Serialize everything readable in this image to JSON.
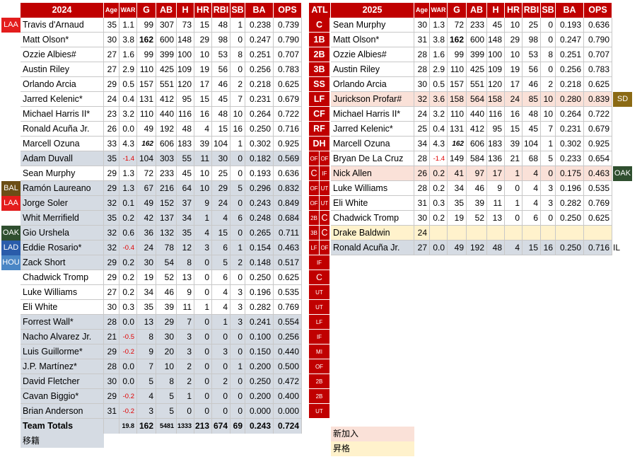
{
  "left": {
    "header": [
      "2024",
      "Age",
      "WAR",
      "G",
      "AB",
      "H",
      "HR",
      "RBI",
      "SB",
      "BA",
      "OPS"
    ],
    "rows": [
      {
        "tag": "LAA",
        "tagc": "#e31d1d",
        "bg": "white",
        "name": "Travis d'Arnaud",
        "age": "35",
        "war": "1.1",
        "g": "99",
        "ab": "307",
        "h": "73",
        "hr": "15",
        "rbi": "48",
        "sb": "1",
        "ba": "0.238",
        "ops": "0.739"
      },
      {
        "tag": "",
        "bg": "white",
        "name": "Matt Olson*",
        "age": "30",
        "war": "3.8",
        "g": "162",
        "gb": true,
        "ab": "600",
        "h": "148",
        "hr": "29",
        "rbi": "98",
        "sb": "0",
        "ba": "0.247",
        "ops": "0.790"
      },
      {
        "tag": "",
        "bg": "white",
        "name": "Ozzie Albies#",
        "age": "27",
        "war": "1.6",
        "g": "99",
        "ab": "399",
        "h": "100",
        "hr": "10",
        "rbi": "53",
        "sb": "8",
        "ba": "0.251",
        "ops": "0.707"
      },
      {
        "tag": "",
        "bg": "white",
        "name": "Austin Riley",
        "age": "27",
        "war": "2.9",
        "g": "110",
        "ab": "425",
        "h": "109",
        "hr": "19",
        "rbi": "56",
        "sb": "0",
        "ba": "0.256",
        "ops": "0.783"
      },
      {
        "tag": "",
        "bg": "white",
        "name": "Orlando Arcia",
        "age": "29",
        "war": "0.5",
        "g": "157",
        "ab": "551",
        "h": "120",
        "hr": "17",
        "rbi": "46",
        "sb": "2",
        "ba": "0.218",
        "ops": "0.625"
      },
      {
        "tag": "",
        "bg": "white",
        "name": "Jarred Kelenic*",
        "age": "24",
        "war": "0.4",
        "g": "131",
        "ab": "412",
        "h": "95",
        "hr": "15",
        "rbi": "45",
        "sb": "7",
        "ba": "0.231",
        "ops": "0.679"
      },
      {
        "tag": "",
        "bg": "white",
        "name": "Michael Harris II*",
        "age": "23",
        "war": "3.2",
        "g": "110",
        "ab": "440",
        "h": "116",
        "hr": "16",
        "rbi": "48",
        "sb": "10",
        "ba": "0.264",
        "ops": "0.722"
      },
      {
        "tag": "",
        "bg": "white",
        "name": "Ronald Acuña Jr.",
        "age": "26",
        "war": "0.0",
        "g": "49",
        "ab": "192",
        "h": "48",
        "hr": "4",
        "rbi": "15",
        "sb": "16",
        "ba": "0.250",
        "ops": "0.716"
      },
      {
        "tag": "",
        "bg": "white",
        "name": "Marcell Ozuna",
        "age": "33",
        "war": "4.3",
        "g": "162",
        "gbi": true,
        "ab": "606",
        "h": "183",
        "hr": "39",
        "rbi": "104",
        "sb": "1",
        "ba": "0.302",
        "ops": "0.925"
      },
      {
        "tag": "",
        "bg": "gray",
        "name": "Adam Duvall",
        "age": "35",
        "war": "-1.4",
        "g": "104",
        "ab": "303",
        "h": "55",
        "hr": "11",
        "rbi": "30",
        "sb": "0",
        "ba": "0.182",
        "ops": "0.569"
      },
      {
        "tag": "",
        "bg": "white",
        "name": "Sean Murphy",
        "age": "29",
        "war": "1.3",
        "g": "72",
        "ab": "233",
        "h": "45",
        "hr": "10",
        "rbi": "25",
        "sb": "0",
        "ba": "0.193",
        "ops": "0.636"
      },
      {
        "tag": "BAL",
        "tagc": "#6b4e16",
        "bg": "gray",
        "name": "Ramón Laureano",
        "age": "29",
        "war": "1.3",
        "g": "67",
        "ab": "216",
        "h": "64",
        "hr": "10",
        "rbi": "29",
        "sb": "5",
        "ba": "0.296",
        "ops": "0.832"
      },
      {
        "tag": "LAA",
        "tagc": "#e31d1d",
        "bg": "gray",
        "name": "Jorge Soler",
        "age": "32",
        "war": "0.1",
        "g": "49",
        "ab": "152",
        "h": "37",
        "hr": "9",
        "rbi": "24",
        "sb": "0",
        "ba": "0.243",
        "ops": "0.849"
      },
      {
        "tag": "",
        "bg": "gray",
        "name": "Whit Merrifield",
        "age": "35",
        "war": "0.2",
        "g": "42",
        "ab": "137",
        "h": "34",
        "hr": "1",
        "rbi": "4",
        "sb": "6",
        "ba": "0.248",
        "ops": "0.684"
      },
      {
        "tag": "OAK",
        "tagc": "#2f4f2f",
        "bg": "gray",
        "name": "Gio Urshela",
        "age": "32",
        "war": "0.6",
        "g": "36",
        "ab": "132",
        "h": "35",
        "hr": "4",
        "rbi": "15",
        "sb": "0",
        "ba": "0.265",
        "ops": "0.711"
      },
      {
        "tag": "LAD",
        "tagc": "#2a5caa",
        "bg": "gray",
        "name": "Eddie Rosario*",
        "age": "32",
        "war": "-0.4",
        "g": "24",
        "ab": "78",
        "h": "12",
        "hr": "3",
        "rbi": "6",
        "sb": "1",
        "ba": "0.154",
        "ops": "0.463"
      },
      {
        "tag": "HOU",
        "tagc": "#4a86c5",
        "bg": "gray",
        "name": "Zack Short",
        "age": "29",
        "war": "0.2",
        "g": "30",
        "ab": "54",
        "h": "8",
        "hr": "0",
        "rbi": "5",
        "sb": "2",
        "ba": "0.148",
        "ops": "0.517"
      },
      {
        "tag": "",
        "bg": "white",
        "name": "Chadwick Tromp",
        "age": "29",
        "war": "0.2",
        "g": "19",
        "ab": "52",
        "h": "13",
        "hr": "0",
        "rbi": "6",
        "sb": "0",
        "ba": "0.250",
        "ops": "0.625"
      },
      {
        "tag": "",
        "bg": "white",
        "name": "Luke Williams",
        "age": "27",
        "war": "0.2",
        "g": "34",
        "ab": "46",
        "h": "9",
        "hr": "0",
        "rbi": "4",
        "sb": "3",
        "ba": "0.196",
        "ops": "0.535"
      },
      {
        "tag": "",
        "bg": "white",
        "name": "Eli White",
        "age": "30",
        "war": "0.3",
        "g": "35",
        "ab": "39",
        "h": "11",
        "hr": "1",
        "rbi": "4",
        "sb": "3",
        "ba": "0.282",
        "ops": "0.769"
      },
      {
        "tag": "",
        "bg": "gray",
        "name": "Forrest Wall*",
        "age": "28",
        "war": "0.0",
        "g": "13",
        "ab": "29",
        "h": "7",
        "hr": "0",
        "rbi": "1",
        "sb": "3",
        "ba": "0.241",
        "ops": "0.554"
      },
      {
        "tag": "",
        "bg": "gray",
        "name": "Nacho Alvarez Jr.",
        "age": "21",
        "war": "-0.5",
        "g": "8",
        "ab": "30",
        "h": "3",
        "hr": "0",
        "rbi": "0",
        "sb": "0",
        "ba": "0.100",
        "ops": "0.256"
      },
      {
        "tag": "",
        "bg": "gray",
        "name": "Luis Guillorme*",
        "age": "29",
        "war": "-0.2",
        "g": "9",
        "ab": "20",
        "h": "3",
        "hr": "0",
        "rbi": "3",
        "sb": "0",
        "ba": "0.150",
        "ops": "0.440"
      },
      {
        "tag": "",
        "bg": "gray",
        "name": "J.P. Martínez*",
        "age": "28",
        "war": "0.0",
        "g": "7",
        "ab": "10",
        "h": "2",
        "hr": "0",
        "rbi": "0",
        "sb": "1",
        "ba": "0.200",
        "ops": "0.500"
      },
      {
        "tag": "",
        "bg": "gray",
        "name": "David Fletcher",
        "age": "30",
        "war": "0.0",
        "g": "5",
        "ab": "8",
        "h": "2",
        "hr": "0",
        "rbi": "2",
        "sb": "0",
        "ba": "0.250",
        "ops": "0.472"
      },
      {
        "tag": "",
        "bg": "gray",
        "name": "Cavan Biggio*",
        "age": "29",
        "war": "-0.2",
        "g": "4",
        "ab": "5",
        "h": "1",
        "hr": "0",
        "rbi": "0",
        "sb": "0",
        "ba": "0.200",
        "ops": "0.400"
      },
      {
        "tag": "",
        "bg": "gray",
        "name": "Brian Anderson",
        "age": "31",
        "war": "-0.2",
        "g": "3",
        "ab": "5",
        "h": "0",
        "hr": "0",
        "rbi": "0",
        "sb": "0",
        "ba": "0.000",
        "ops": "0.000"
      }
    ],
    "totals": {
      "name": "Team Totals",
      "age": "",
      "war": "19.8",
      "g": "162",
      "ab": "5481",
      "h": "1333",
      "hr": "213",
      "rbi": "674",
      "sb": "69",
      "ba": "0.243",
      "ops": "0.724"
    }
  },
  "positions": {
    "header": "ATL",
    "items": [
      {
        "l": "C"
      },
      {
        "l": "1B"
      },
      {
        "l": "2B"
      },
      {
        "l": "3B"
      },
      {
        "l": "SS"
      },
      {
        "l": "LF"
      },
      {
        "l": "CF"
      },
      {
        "l": "RF"
      },
      {
        "l": "DH"
      },
      {
        "a": "OF",
        "b": "OF"
      },
      {
        "a": "C",
        "b": "IF"
      },
      {
        "a": "OF",
        "b": "UT"
      },
      {
        "a": "OF",
        "b": "UT"
      },
      {
        "a": "2B",
        "b": "C"
      },
      {
        "a": "3B",
        "b": "C"
      },
      {
        "a": "LF",
        "b": "OF"
      },
      {
        "l": "IF"
      },
      {
        "l": "C"
      },
      {
        "l": "UT"
      },
      {
        "l": "UT"
      },
      {
        "l": "LF"
      },
      {
        "l": "IF"
      },
      {
        "l": "MI"
      },
      {
        "l": "OF"
      },
      {
        "l": "2B"
      },
      {
        "l": "2B"
      },
      {
        "l": "UT"
      }
    ]
  },
  "right": {
    "header": [
      "2025",
      "Age",
      "WAR",
      "G",
      "AB",
      "H",
      "HR",
      "RBI",
      "SB",
      "BA",
      "OPS"
    ],
    "rows": [
      {
        "bg": "white",
        "name": "Sean Murphy",
        "age": "30",
        "war": "1.3",
        "g": "72",
        "ab": "233",
        "h": "45",
        "hr": "10",
        "rbi": "25",
        "sb": "0",
        "ba": "0.193",
        "ops": "0.636"
      },
      {
        "bg": "white",
        "name": "Matt Olson*",
        "age": "31",
        "war": "3.8",
        "g": "162",
        "gb": true,
        "ab": "600",
        "h": "148",
        "hr": "29",
        "rbi": "98",
        "sb": "0",
        "ba": "0.247",
        "ops": "0.790"
      },
      {
        "bg": "white",
        "name": "Ozzie Albies#",
        "age": "28",
        "war": "1.6",
        "g": "99",
        "ab": "399",
        "h": "100",
        "hr": "10",
        "rbi": "53",
        "sb": "8",
        "ba": "0.251",
        "ops": "0.707"
      },
      {
        "bg": "white",
        "name": "Austin Riley",
        "age": "28",
        "war": "2.9",
        "g": "110",
        "ab": "425",
        "h": "109",
        "hr": "19",
        "rbi": "56",
        "sb": "0",
        "ba": "0.256",
        "ops": "0.783"
      },
      {
        "bg": "white",
        "name": "Orlando Arcia",
        "age": "30",
        "war": "0.5",
        "g": "157",
        "ab": "551",
        "h": "120",
        "hr": "17",
        "rbi": "46",
        "sb": "2",
        "ba": "0.218",
        "ops": "0.625"
      },
      {
        "bg": "pink",
        "name": "Jurickson Profar#",
        "age": "32",
        "war": "3.6",
        "g": "158",
        "ab": "564",
        "h": "158",
        "hr": "24",
        "rbi": "85",
        "sb": "10",
        "ba": "0.280",
        "ops": "0.839",
        "rtag": "SD",
        "rtagc": "#8b6a14"
      },
      {
        "bg": "white",
        "name": "Michael Harris II*",
        "age": "24",
        "war": "3.2",
        "g": "110",
        "ab": "440",
        "h": "116",
        "hr": "16",
        "rbi": "48",
        "sb": "10",
        "ba": "0.264",
        "ops": "0.722"
      },
      {
        "bg": "white",
        "name": "Jarred Kelenic*",
        "age": "25",
        "war": "0.4",
        "g": "131",
        "ab": "412",
        "h": "95",
        "hr": "15",
        "rbi": "45",
        "sb": "7",
        "ba": "0.231",
        "ops": "0.679"
      },
      {
        "bg": "white",
        "name": "Marcell Ozuna",
        "age": "34",
        "war": "4.3",
        "g": "162",
        "gbi": true,
        "ab": "606",
        "h": "183",
        "hr": "39",
        "rbi": "104",
        "sb": "1",
        "ba": "0.302",
        "ops": "0.925"
      },
      {
        "bg": "white",
        "name": "Bryan De La Cruz",
        "age": "28",
        "war": "-1.4",
        "g": "149",
        "ab": "584",
        "h": "136",
        "hr": "21",
        "rbi": "68",
        "sb": "5",
        "ba": "0.233",
        "ops": "0.654"
      },
      {
        "bg": "pink",
        "name": "Nick Allen",
        "age": "26",
        "war": "0.2",
        "g": "41",
        "ab": "97",
        "h": "17",
        "hr": "1",
        "rbi": "4",
        "sb": "0",
        "ba": "0.175",
        "ops": "0.463",
        "rtag": "OAK",
        "rtagc": "#2f4f2f"
      },
      {
        "bg": "white",
        "name": "Luke Williams",
        "age": "28",
        "war": "0.2",
        "g": "34",
        "ab": "46",
        "h": "9",
        "hr": "0",
        "rbi": "4",
        "sb": "3",
        "ba": "0.196",
        "ops": "0.535"
      },
      {
        "bg": "white",
        "name": "Eli White",
        "age": "31",
        "war": "0.3",
        "g": "35",
        "ab": "39",
        "h": "11",
        "hr": "1",
        "rbi": "4",
        "sb": "3",
        "ba": "0.282",
        "ops": "0.769"
      },
      {
        "bg": "white",
        "name": "Chadwick Tromp",
        "age": "30",
        "war": "0.2",
        "g": "19",
        "ab": "52",
        "h": "13",
        "hr": "0",
        "rbi": "6",
        "sb": "0",
        "ba": "0.250",
        "ops": "0.625"
      },
      {
        "bg": "yellow",
        "name": "Drake Baldwin",
        "age": "24",
        "war": "",
        "g": "",
        "ab": "",
        "h": "",
        "hr": "",
        "rbi": "",
        "sb": "",
        "ba": "",
        "ops": ""
      },
      {
        "bg": "gray",
        "name": "Ronald Acuña Jr.",
        "age": "27",
        "war": "0.0",
        "g": "49",
        "ab": "192",
        "h": "48",
        "hr": "4",
        "rbi": "15",
        "sb": "16",
        "ba": "0.250",
        "ops": "0.716",
        "rtext": "IL"
      }
    ]
  },
  "legend": {
    "transferred": "移籍",
    "new_addition": "新加入",
    "promoted": "昇格"
  },
  "colors": {
    "header_red": "#c00000",
    "gray_row": "#d5dbe3",
    "pink_row": "#fae1d8",
    "yellow_row": "#fff2cc"
  }
}
